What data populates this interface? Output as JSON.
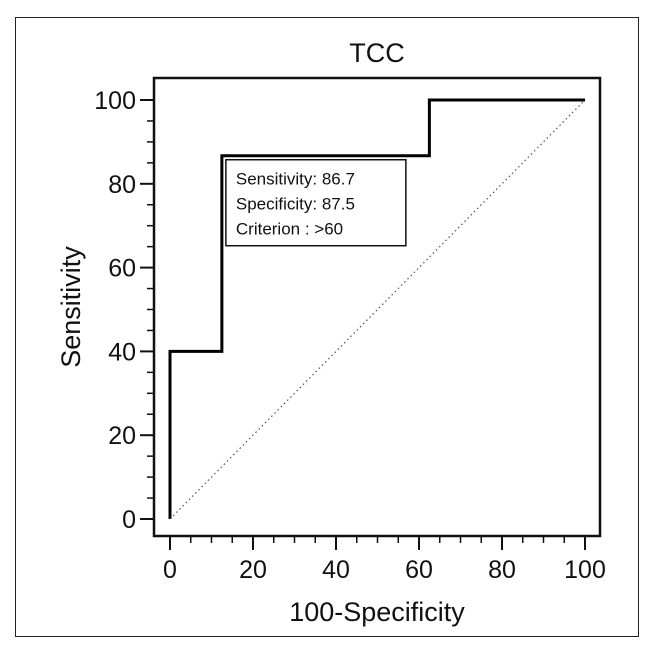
{
  "chart_data": {
    "type": "line",
    "title": "TCC",
    "xlabel": "100-Specificity",
    "ylabel": "Sensitivity",
    "xlim": [
      0,
      100
    ],
    "ylim": [
      0,
      100
    ],
    "x_ticks": [
      0,
      20,
      40,
      60,
      80,
      100
    ],
    "y_ticks": [
      0,
      20,
      40,
      60,
      80,
      100
    ],
    "grid": false,
    "series": [
      {
        "style": "step",
        "x": [
          0,
          0,
          12.5,
          12.5,
          62.5,
          62.5,
          100
        ],
        "y": [
          0,
          40,
          40,
          86.7,
          86.7,
          100,
          100
        ],
        "color": "#000000"
      },
      {
        "style": "dotted",
        "x": [
          0,
          100
        ],
        "y": [
          0,
          100
        ],
        "color": "#555555"
      }
    ],
    "annotation": {
      "lines": [
        "Sensitivity: 86.7",
        "Specificity: 87.5",
        "Criterion : >60"
      ],
      "anchor_x": 12.5,
      "anchor_y": 86.7
    }
  }
}
